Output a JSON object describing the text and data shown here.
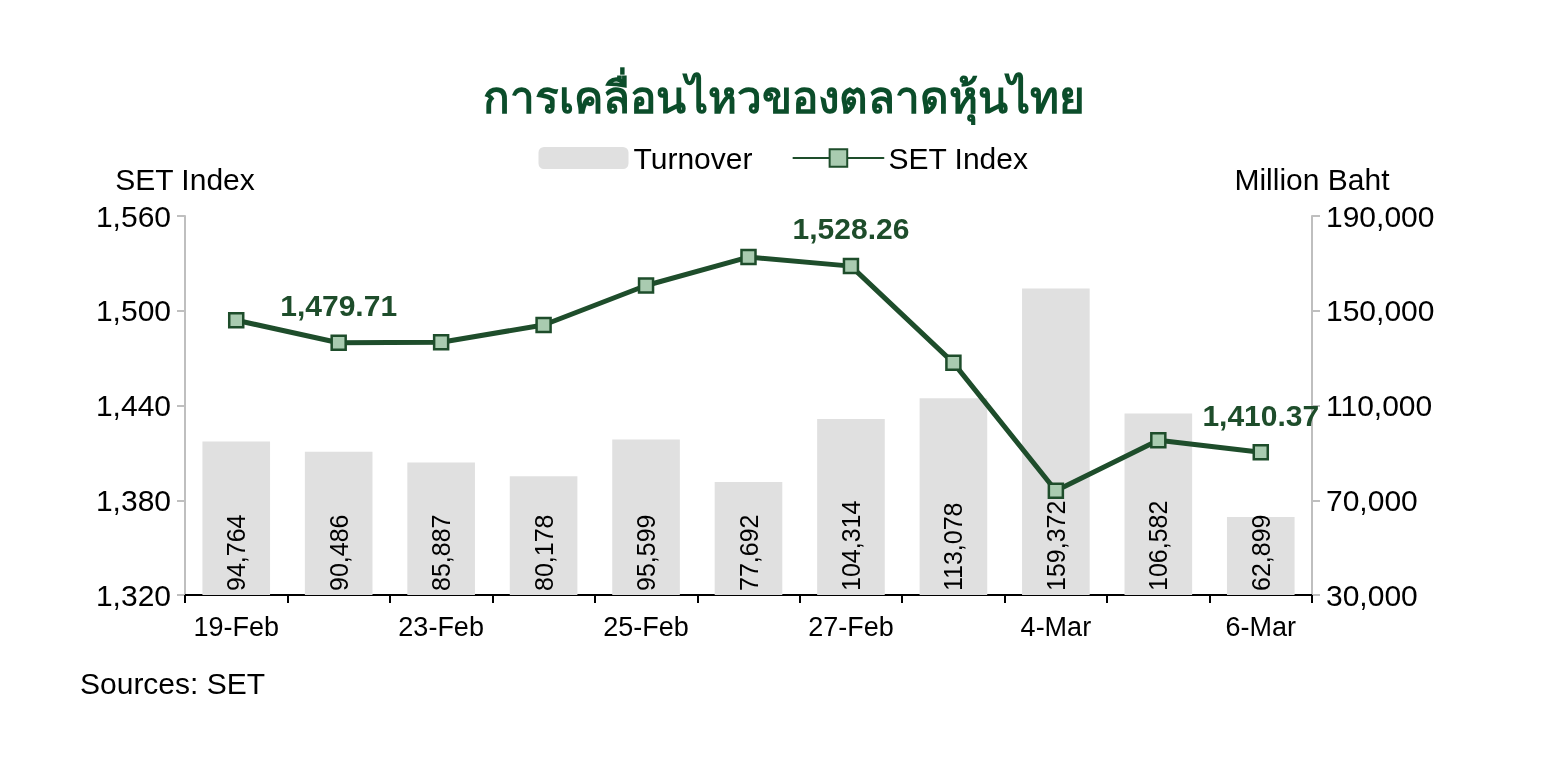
{
  "chart_data": {
    "type": "bar",
    "title": "การเคลื่อนไหวของตลาดหุ้นไทย",
    "ylabel": "SET Index",
    "y2label": "Million Baht",
    "categories": [
      "19-Feb",
      null,
      "23-Feb",
      null,
      "25-Feb",
      null,
      "27-Feb",
      null,
      "4-Mar",
      null,
      "6-Mar"
    ],
    "series": [
      {
        "name": "Turnover",
        "axis": "y2",
        "color": "#e0e0e0",
        "values": [
          94764,
          90486,
          85887,
          80178,
          95599,
          77692,
          104314,
          113078,
          159372,
          106582,
          62899
        ],
        "value_labels": [
          "94,764",
          "90,486",
          "85,887",
          "80,178",
          "95,599",
          "77,692",
          "104,314",
          "113,078",
          "159,372",
          "106,582",
          "62,899"
        ]
      },
      {
        "name": "SET Index",
        "type": "line",
        "axis": "y",
        "color": "#1e4d2b",
        "marker": "square",
        "values": [
          1494,
          1479.71,
          1480,
          1491,
          1516,
          1534,
          1528.26,
          1467,
          1386,
          1418,
          1410.37
        ],
        "value_labels": [
          null,
          "1,479.71",
          null,
          null,
          null,
          null,
          "1,528.26",
          null,
          null,
          null,
          "1,410.37"
        ]
      }
    ],
    "ylim": [
      1320,
      1560
    ],
    "yticks": [
      {
        "value": 1320,
        "label": "1,320"
      },
      {
        "value": 1380,
        "label": "1,380"
      },
      {
        "value": 1440,
        "label": "1,440"
      },
      {
        "value": 1500,
        "label": "1,500"
      },
      {
        "value": 1560,
        "label": "1,560"
      }
    ],
    "y2lim": [
      30000,
      190000
    ],
    "y2ticks": [
      {
        "value": 30000,
        "label": "30,000"
      },
      {
        "value": 70000,
        "label": "70,000"
      },
      {
        "value": 110000,
        "label": "110,000"
      },
      {
        "value": 150000,
        "label": "150,000"
      },
      {
        "value": 190000,
        "label": "190,000"
      }
    ],
    "grid": false,
    "legend": "top",
    "annotations": [
      "Sources: SET"
    ]
  }
}
